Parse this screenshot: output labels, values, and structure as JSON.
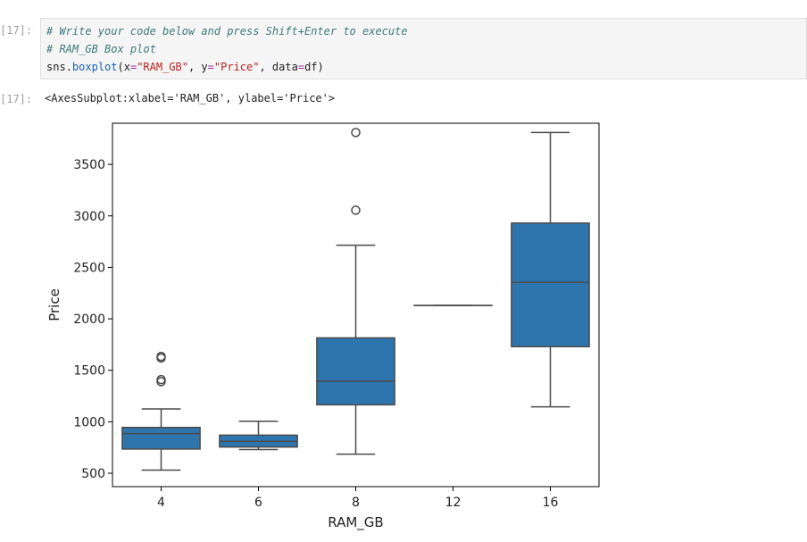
{
  "cell": {
    "input_prompt": "[17]:",
    "output_prompt": "[17]:",
    "code": {
      "line1_comment": "# Write your code below and press Shift+Enter to execute",
      "line2_comment": "# RAM_GB Box plot",
      "line3_tokens": [
        {
          "text": "sns",
          "kind": "plain"
        },
        {
          "text": ".",
          "kind": "plain"
        },
        {
          "text": "boxplot",
          "kind": "func"
        },
        {
          "text": "(x",
          "kind": "plain"
        },
        {
          "text": "=",
          "kind": "op"
        },
        {
          "text": "\"RAM_GB\"",
          "kind": "str"
        },
        {
          "text": ", y",
          "kind": "plain"
        },
        {
          "text": "=",
          "kind": "op"
        },
        {
          "text": "\"Price\"",
          "kind": "str"
        },
        {
          "text": ", data",
          "kind": "plain"
        },
        {
          "text": "=",
          "kind": "op"
        },
        {
          "text": "df)",
          "kind": "plain"
        }
      ]
    },
    "output_text": "<AxesSubplot:xlabel='RAM_GB', ylabel='Price'>"
  },
  "colors": {
    "box_fill": "#2e75ae",
    "line": "#4a4a4a",
    "comment": "#3d7a7a",
    "string": "#ba2121",
    "function": "#1a5fb4"
  },
  "chart_data": {
    "type": "box",
    "xlabel": "RAM_GB",
    "ylabel": "Price",
    "ylim": [
      370,
      3900
    ],
    "yticks": [
      500,
      1000,
      1500,
      2000,
      2500,
      3000,
      3500
    ],
    "categories": [
      "4",
      "6",
      "8",
      "12",
      "16"
    ],
    "boxes": [
      {
        "category": "4",
        "whisker_low": 530,
        "q1": 735,
        "median": 885,
        "q3": 945,
        "whisker_high": 1125,
        "outliers": [
          1390,
          1410,
          1620,
          1635
        ]
      },
      {
        "category": "6",
        "whisker_low": 730,
        "q1": 755,
        "median": 810,
        "q3": 870,
        "whisker_high": 1005,
        "outliers": []
      },
      {
        "category": "8",
        "whisker_low": 685,
        "q1": 1165,
        "median": 1395,
        "q3": 1815,
        "whisker_high": 2715,
        "outliers": [
          3055,
          3810
        ]
      },
      {
        "category": "12",
        "whisker_low": 2130,
        "q1": 2130,
        "median": 2130,
        "q3": 2130,
        "whisker_high": 2130,
        "outliers": []
      },
      {
        "category": "16",
        "whisker_low": 1145,
        "q1": 1730,
        "median": 2355,
        "q3": 2930,
        "whisker_high": 3810,
        "outliers": []
      }
    ],
    "grid": false,
    "legend": "none"
  }
}
